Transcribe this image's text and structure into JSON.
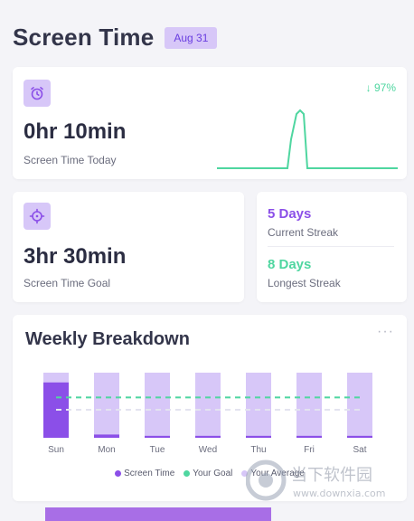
{
  "header": {
    "title": "Screen Time",
    "date": "Aug 31"
  },
  "today": {
    "value": "0hr 10min",
    "label": "Screen Time Today",
    "trend": "↓ 97%",
    "icon": "alarm-clock-icon"
  },
  "goal": {
    "value": "3hr 30min",
    "label": "Screen Time Goal",
    "icon": "target-icon"
  },
  "streaks": {
    "current_value": "5 Days",
    "current_label": "Current Streak",
    "longest_value": "8 Days",
    "longest_label": "Longest Streak"
  },
  "weekly": {
    "title": "Weekly Breakdown",
    "menu": "···",
    "legend": {
      "screen_time": "Screen Time",
      "your_goal": "Your Goal",
      "your_average": "Your Average"
    }
  },
  "colors": {
    "accent": "#8b4fe8",
    "accent_light": "#d7c7f8",
    "goal": "#4fd6a0",
    "average": "#e3e3ef"
  },
  "chart_data": {
    "type": "bar",
    "categories": [
      "Sun",
      "Mon",
      "Tue",
      "Wed",
      "Thu",
      "Fri",
      "Sat"
    ],
    "series": [
      {
        "name": "Screen Time",
        "values": [
          0.85,
          0.05,
          0.03,
          0.03,
          0.03,
          0.03,
          0.03
        ]
      }
    ],
    "goal_level": 0.62,
    "average_level": 0.43,
    "ylim": [
      0,
      1
    ]
  },
  "watermark": {
    "text": "当下软件园",
    "url": "www.downxia.com"
  }
}
